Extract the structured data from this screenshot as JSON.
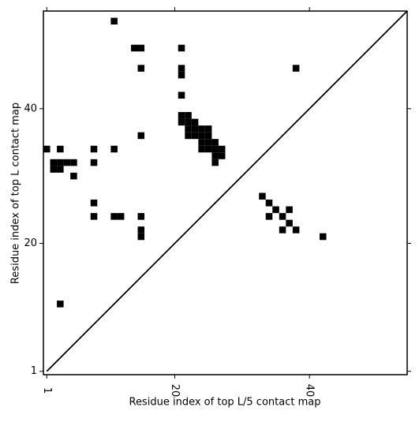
{
  "chart_data": {
    "type": "scatter",
    "xlabel": "Residue index of top L/5 contact map",
    "ylabel": "Residue index of top L contact map",
    "x": [
      11,
      14,
      15,
      21,
      15,
      38,
      21,
      21,
      21,
      21,
      22,
      21,
      22,
      23,
      22,
      23,
      24,
      25,
      22,
      23,
      24,
      25,
      24,
      25,
      26,
      24,
      25,
      26,
      27,
      26,
      27,
      26,
      15,
      1,
      3,
      8,
      11,
      2,
      3,
      4,
      5,
      2,
      3,
      8,
      5,
      8,
      8,
      11,
      12,
      15,
      15,
      15,
      33,
      34,
      35,
      37,
      34,
      36,
      37,
      36,
      38,
      42,
      3
    ],
    "y": [
      53,
      49,
      49,
      49,
      46,
      46,
      46,
      45,
      42,
      39,
      39,
      38,
      38,
      38,
      37,
      37,
      37,
      37,
      36,
      36,
      36,
      36,
      35,
      35,
      35,
      34,
      34,
      34,
      34,
      33,
      33,
      32,
      36,
      34,
      34,
      34,
      34,
      32,
      32,
      32,
      32,
      31,
      31,
      32,
      30,
      26,
      24,
      24,
      24,
      24,
      22,
      21,
      27,
      26,
      25,
      25,
      24,
      24,
      23,
      22,
      22,
      21,
      11
    ],
    "color": "#000000",
    "xlim": [
      0.5,
      54.5
    ],
    "ylim": [
      0.5,
      54.5
    ],
    "xticks": [
      1,
      20,
      40
    ],
    "yticks": [
      1,
      20,
      40
    ]
  }
}
